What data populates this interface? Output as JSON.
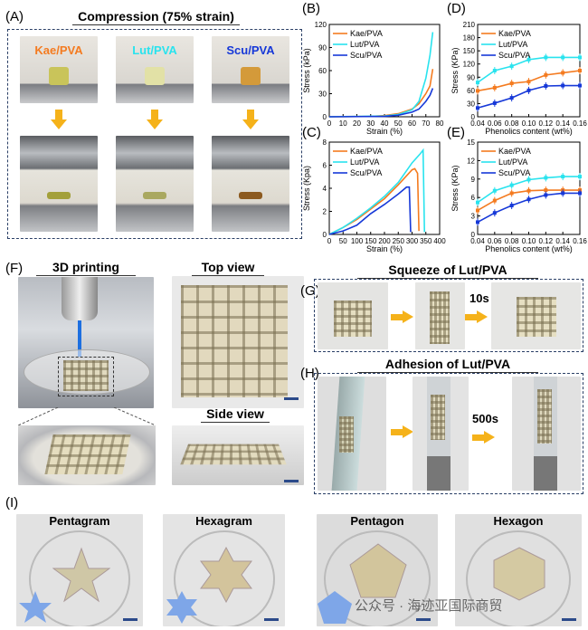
{
  "panelA": {
    "label": "(A)",
    "title": "Compression (75% strain)",
    "samples": [
      {
        "name": "Kae/PVA",
        "color": "#f47b20"
      },
      {
        "name": "Lut/PVA",
        "color": "#29e3ee"
      },
      {
        "name": "Scu/PVA",
        "color": "#1638d8"
      }
    ]
  },
  "panelF": {
    "label": "(F)",
    "title": "3D printing",
    "top_view": "Top view",
    "side_view": "Side view"
  },
  "panelG": {
    "label": "(G)",
    "title": "Squeeze of Lut/PVA",
    "time": "10s"
  },
  "panelH": {
    "label": "(H)",
    "title": "Adhesion of Lut/PVA",
    "time": "500s"
  },
  "panelI": {
    "label": "(I)",
    "shapes": [
      "Pentagram",
      "Hexagram",
      "Pentagon",
      "Hexagon"
    ]
  },
  "watermark": "公众号 · 海迹亚国际商贸",
  "colors": {
    "kae": "#f47b20",
    "lut": "#29e3ee",
    "scu": "#1638d8",
    "arrow": "#f5b21a"
  },
  "chart_data": [
    {
      "id": "B",
      "label": "(B)",
      "type": "line",
      "xlabel": "Strain (%)",
      "ylabel": "Stress (kPa)",
      "xlim": [
        0,
        80
      ],
      "ylim": [
        0,
        120
      ],
      "xticks": [
        0,
        10,
        20,
        30,
        40,
        50,
        60,
        70,
        80
      ],
      "yticks": [
        0,
        30,
        60,
        90,
        120
      ],
      "legend": "top-left",
      "series": [
        {
          "name": "Kae/PVA",
          "color": "#f47b20",
          "points": [
            [
              0,
              0
            ],
            [
              30,
              0.5
            ],
            [
              40,
              1.5
            ],
            [
              50,
              4
            ],
            [
              60,
              10
            ],
            [
              65,
              17
            ],
            [
              70,
              30
            ],
            [
              73,
              40
            ],
            [
              75,
              62
            ]
          ]
        },
        {
          "name": "Lut/PVA",
          "color": "#29e3ee",
          "points": [
            [
              0,
              0
            ],
            [
              40,
              1
            ],
            [
              50,
              3
            ],
            [
              60,
              9
            ],
            [
              65,
              20
            ],
            [
              70,
              50
            ],
            [
              73,
              80
            ],
            [
              75,
              110
            ]
          ]
        },
        {
          "name": "Scu/PVA",
          "color": "#1638d8",
          "points": [
            [
              0,
              0
            ],
            [
              40,
              0.5
            ],
            [
              50,
              2
            ],
            [
              60,
              6
            ],
            [
              65,
              10
            ],
            [
              70,
              20
            ],
            [
              73,
              28
            ],
            [
              75,
              37
            ]
          ]
        }
      ]
    },
    {
      "id": "C",
      "label": "(C)",
      "type": "line",
      "xlabel": "Strain (%)",
      "ylabel": "Stress (Kpa)",
      "xlim": [
        0,
        400
      ],
      "ylim": [
        0,
        8
      ],
      "xticks": [
        0,
        50,
        100,
        150,
        200,
        250,
        300,
        350,
        400
      ],
      "yticks": [
        0,
        2,
        4,
        6,
        8
      ],
      "legend": "top-left",
      "series": [
        {
          "name": "Kae/PVA",
          "color": "#f47b20",
          "points": [
            [
              0,
              0
            ],
            [
              50,
              0.6
            ],
            [
              100,
              1.3
            ],
            [
              150,
              2.2
            ],
            [
              200,
              3.1
            ],
            [
              250,
              4.3
            ],
            [
              300,
              5.6
            ],
            [
              310,
              5.7
            ],
            [
              320,
              5.3
            ],
            [
              325,
              0.3
            ]
          ]
        },
        {
          "name": "Lut/PVA",
          "color": "#29e3ee",
          "points": [
            [
              0,
              0
            ],
            [
              50,
              0.6
            ],
            [
              100,
              1.4
            ],
            [
              150,
              2.3
            ],
            [
              200,
              3.3
            ],
            [
              250,
              4.5
            ],
            [
              300,
              6.2
            ],
            [
              330,
              7
            ],
            [
              340,
              7.3
            ],
            [
              345,
              0.2
            ]
          ]
        },
        {
          "name": "Scu/PVA",
          "color": "#1638d8",
          "points": [
            [
              0,
              0
            ],
            [
              50,
              0.3
            ],
            [
              100,
              0.8
            ],
            [
              150,
              1.8
            ],
            [
              200,
              2.6
            ],
            [
              250,
              3.5
            ],
            [
              280,
              4.1
            ],
            [
              290,
              4.1
            ],
            [
              295,
              0.2
            ]
          ]
        }
      ]
    },
    {
      "id": "D",
      "label": "(D)",
      "type": "line",
      "xlabel": "Phenolics content (wt%)",
      "ylabel": "Stress (KPa)",
      "xlim": [
        0.04,
        0.16
      ],
      "ylim": [
        0,
        210
      ],
      "xticks": [
        "0.04",
        "0.06",
        "0.08",
        "0.10",
        "0.12",
        "0.14",
        "0.16"
      ],
      "yticks": [
        0,
        30,
        60,
        90,
        120,
        150,
        180,
        210
      ],
      "legend": "top-left",
      "markers": true,
      "x": [
        0.04,
        0.06,
        0.08,
        0.1,
        0.12,
        0.14,
        0.16
      ],
      "series": [
        {
          "name": "Kae/PVA",
          "color": "#f47b20",
          "values": [
            59,
            66,
            76,
            80,
            95,
            100,
            105
          ]
        },
        {
          "name": "Lut/PVA",
          "color": "#29e3ee",
          "values": [
            78,
            105,
            115,
            130,
            135,
            135,
            135
          ]
        },
        {
          "name": "Scu/PVA",
          "color": "#1638d8",
          "values": [
            20,
            31,
            43,
            60,
            70,
            71,
            71
          ]
        }
      ]
    },
    {
      "id": "E",
      "label": "(E)",
      "type": "line",
      "xlabel": "Phenolics content (wt%)",
      "ylabel": "Stress (KPa)",
      "xlim": [
        0.04,
        0.16
      ],
      "ylim": [
        0,
        15
      ],
      "xticks": [
        "0.04",
        "0.06",
        "0.08",
        "0.10",
        "0.12",
        "0.14",
        "0.16"
      ],
      "yticks": [
        0,
        3,
        6,
        9,
        12,
        15
      ],
      "legend": "top-left",
      "markers": true,
      "x": [
        0.04,
        0.06,
        0.08,
        0.1,
        0.12,
        0.14,
        0.16
      ],
      "series": [
        {
          "name": "Kae/PVA",
          "color": "#f47b20",
          "values": [
            3.9,
            5.5,
            6.7,
            7.1,
            7.2,
            7.2,
            7.2
          ]
        },
        {
          "name": "Lut/PVA",
          "color": "#29e3ee",
          "values": [
            5.2,
            7.1,
            8.0,
            8.9,
            9.2,
            9.4,
            9.4
          ]
        },
        {
          "name": "Scu/PVA",
          "color": "#1638d8",
          "values": [
            2.0,
            3.5,
            4.7,
            5.7,
            6.4,
            6.7,
            6.7
          ]
        }
      ]
    }
  ]
}
